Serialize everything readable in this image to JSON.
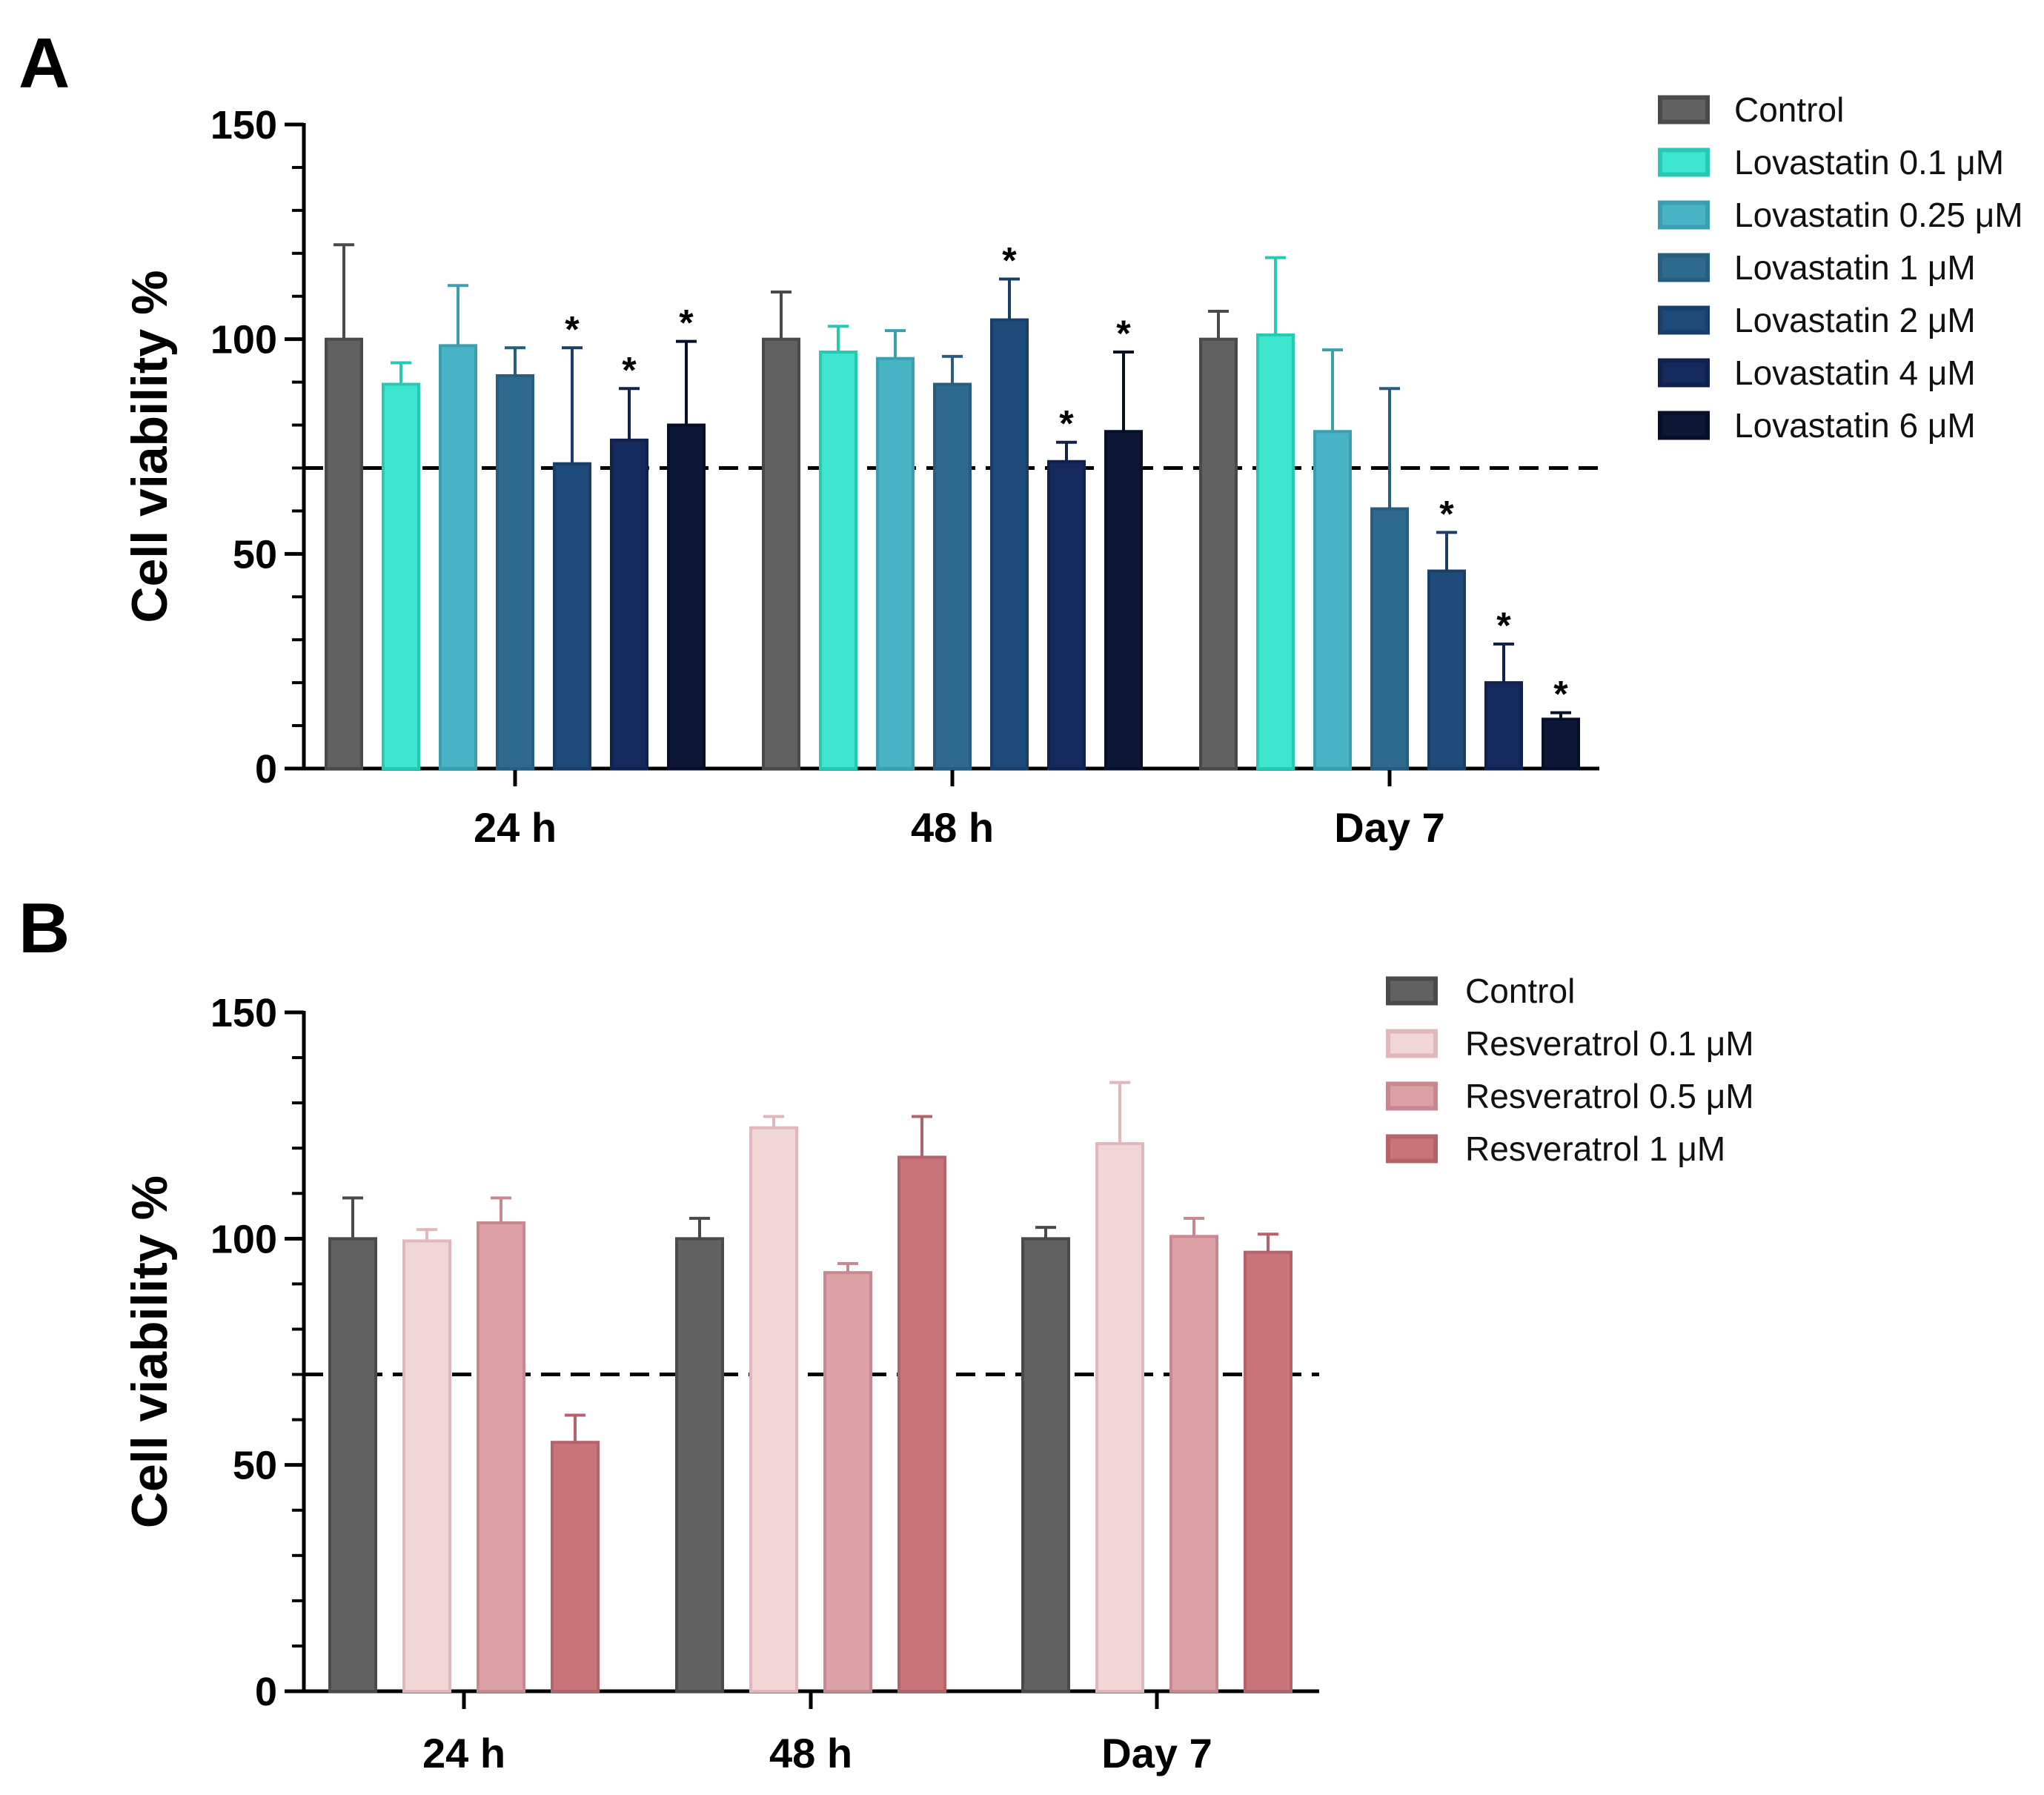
{
  "chart_data": [
    {
      "panel": "A",
      "type": "bar",
      "ylabel": "Cell viability %",
      "xlabel": "",
      "ylim": [
        0,
        150
      ],
      "yticks": [
        "0",
        "50",
        "100",
        "150"
      ],
      "categories": [
        "24 h",
        "48 h",
        "Day 7"
      ],
      "threshold": 70,
      "legend_position": "top-right",
      "series": [
        {
          "name": "Control",
          "fill": "#616161",
          "stroke": "#4a4a4a",
          "values": [
            100,
            100,
            100
          ],
          "errors": [
            22,
            11,
            6.5
          ],
          "stars": [
            false,
            false,
            false
          ]
        },
        {
          "name": "Lovastatin 0.1 μM",
          "fill": "#3ee6d0",
          "stroke": "#28c9b4",
          "values": [
            89.5,
            97,
            101
          ],
          "errors": [
            5,
            6,
            18
          ],
          "stars": [
            false,
            false,
            false
          ]
        },
        {
          "name": "Lovastatin 0.25 μM",
          "fill": "#48b3c4",
          "stroke": "#3aa0b0",
          "values": [
            98.5,
            95.5,
            78.5
          ],
          "errors": [
            14,
            6.5,
            19
          ],
          "stars": [
            false,
            false,
            false
          ]
        },
        {
          "name": "Lovastatin 1 μM",
          "fill": "#2e6a8e",
          "stroke": "#275d7e",
          "values": [
            91.5,
            89.5,
            60.5
          ],
          "errors": [
            6.5,
            6.5,
            28
          ],
          "stars": [
            false,
            false,
            false
          ]
        },
        {
          "name": "Lovastatin 2 μM",
          "fill": "#1e4a7a",
          "stroke": "#193f69",
          "values": [
            71,
            104.5,
            46
          ],
          "errors": [
            27,
            9.5,
            9
          ],
          "stars": [
            true,
            true,
            true
          ]
        },
        {
          "name": "Lovastatin 4 μM",
          "fill": "#152a5c",
          "stroke": "#10224c",
          "values": [
            76.5,
            71.5,
            20
          ],
          "errors": [
            12,
            4.5,
            9
          ],
          "stars": [
            true,
            true,
            true
          ]
        },
        {
          "name": "Lovastatin 6 μM",
          "fill": "#0c1736",
          "stroke": "#070f28",
          "values": [
            80,
            78.5,
            11.5
          ],
          "errors": [
            19.5,
            18.5,
            1.5
          ],
          "stars": [
            true,
            true,
            true
          ]
        }
      ],
      "annotations": [
        "*"
      ]
    },
    {
      "panel": "B",
      "type": "bar",
      "ylabel": "Cell viability %",
      "xlabel": "",
      "ylim": [
        0,
        150
      ],
      "yticks": [
        "0",
        "50",
        "100",
        "150"
      ],
      "categories": [
        "24 h",
        "48 h",
        "Day 7"
      ],
      "threshold": 70,
      "legend_position": "top-right",
      "series": [
        {
          "name": "Control",
          "fill": "#616161",
          "stroke": "#4a4a4a",
          "values": [
            100,
            100,
            100
          ],
          "errors": [
            9,
            4.5,
            2.5
          ],
          "stars": [
            false,
            false,
            false
          ]
        },
        {
          "name": "Resveratrol 0.1 μM",
          "fill": "#f1d6d8",
          "stroke": "#e2b7bb",
          "values": [
            99.5,
            124.5,
            121
          ],
          "errors": [
            2.5,
            2.5,
            13.5
          ],
          "stars": [
            false,
            false,
            false
          ]
        },
        {
          "name": "Resveratrol 0.5 μM",
          "fill": "#dca0a7",
          "stroke": "#c8888f",
          "values": [
            103.5,
            92.5,
            100.5
          ],
          "errors": [
            5.5,
            2,
            4
          ],
          "stars": [
            false,
            false,
            false
          ]
        },
        {
          "name": "Resveratrol 1 μM",
          "fill": "#c97479",
          "stroke": "#b5636a",
          "values": [
            55,
            118,
            97
          ],
          "errors": [
            6,
            9,
            4
          ],
          "stars": [
            false,
            false,
            false
          ]
        }
      ]
    }
  ],
  "panels": {
    "a_letter": "A",
    "b_letter": "B"
  }
}
